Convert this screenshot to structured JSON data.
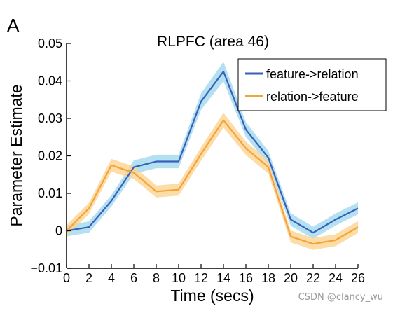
{
  "panel_letter": "A",
  "watermark": "CSDN @clancy_wu",
  "chart_data": {
    "type": "line",
    "title": "RLPFC (area 46)",
    "xlabel": "Time (secs)",
    "ylabel": "Parameter Estimate",
    "xlim": [
      0,
      26
    ],
    "ylim": [
      -0.01,
      0.05
    ],
    "x": [
      0,
      2,
      4,
      6,
      8,
      10,
      12,
      14,
      16,
      18,
      20,
      22,
      24,
      26
    ],
    "xticks": [
      "0",
      "2",
      "4",
      "6",
      "8",
      "10",
      "12",
      "14",
      "16",
      "18",
      "20",
      "22",
      "24",
      "26"
    ],
    "yticks": [
      "0.05",
      "0.04",
      "0.03",
      "0.02",
      "0.01",
      "0",
      "−0.01"
    ],
    "ytick_values": [
      0.05,
      0.04,
      0.03,
      0.02,
      0.01,
      0,
      -0.01
    ],
    "legend_position": "top-right",
    "grid": false,
    "series": [
      {
        "name": "feature->relation",
        "color": "#3a5fb8",
        "band_color": "#a6dcef",
        "values": [
          0.0,
          0.001,
          0.008,
          0.017,
          0.0185,
          0.0185,
          0.0345,
          0.0425,
          0.027,
          0.0195,
          0.003,
          -0.0005,
          0.003,
          0.006
        ],
        "band": [
          0.0015,
          0.0015,
          0.0015,
          0.0018,
          0.0018,
          0.0018,
          0.0022,
          0.0026,
          0.002,
          0.0018,
          0.0017,
          0.0016,
          0.0016,
          0.0016
        ]
      },
      {
        "name": "relation->feature",
        "color": "#f5a23a",
        "band_color": "#fbd591",
        "values": [
          0.0,
          0.006,
          0.0175,
          0.0155,
          0.0105,
          0.011,
          0.0205,
          0.0295,
          0.022,
          0.017,
          -0.0015,
          -0.0035,
          -0.0025,
          0.001
        ],
        "band": [
          0.0015,
          0.0015,
          0.0017,
          0.0017,
          0.0016,
          0.0016,
          0.0018,
          0.002,
          0.0018,
          0.0017,
          0.0016,
          0.0016,
          0.0016,
          0.0016
        ]
      }
    ]
  }
}
